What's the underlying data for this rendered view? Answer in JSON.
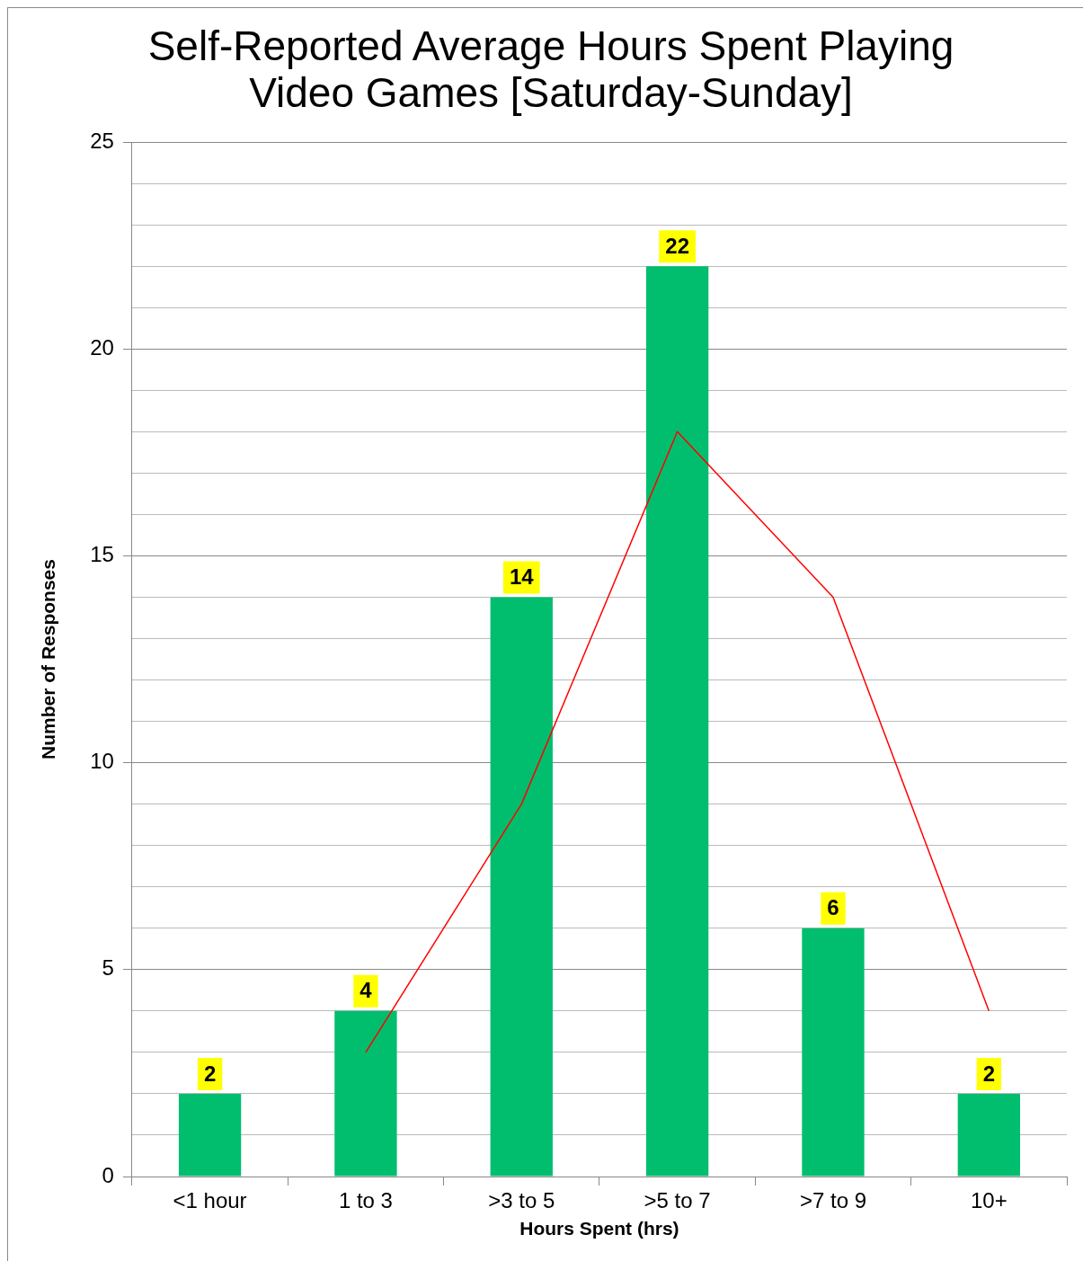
{
  "chart_data": {
    "type": "bar",
    "title": "Self-Reported Average Hours Spent Playing Video Games [Saturday-Sunday]",
    "xlabel": "Hours Spent (hrs)",
    "ylabel": "Number of Responses",
    "categories": [
      "<1 hour",
      "1 to 3",
      ">3 to 5",
      ">5 to 7",
      ">7 to 9",
      "10+"
    ],
    "series": [
      {
        "color": "#00be6e",
        "values": [
          2,
          4,
          14,
          22,
          6,
          2
        ],
        "value_labels": [
          "2",
          "4",
          "14",
          "22",
          "6",
          "2"
        ]
      },
      {
        "type": "line",
        "color": "#ff0000",
        "values": [
          null,
          3,
          9,
          18,
          14,
          4
        ]
      }
    ],
    "ylim": [
      0,
      25
    ],
    "yticks": [
      0,
      {
        "value": 1,
        "label": null
      },
      {
        "value": 2,
        "label": null
      },
      {
        "value": 3,
        "label": null
      },
      {
        "value": 4,
        "label": null
      },
      5,
      {
        "value": 6,
        "label": null
      },
      {
        "value": 7,
        "label": null
      },
      {
        "value": 8,
        "label": null
      },
      {
        "value": 9,
        "label": null
      },
      10,
      {
        "value": 11,
        "label": null
      },
      {
        "value": 12,
        "label": null
      },
      {
        "value": 13,
        "label": null
      },
      {
        "value": 14,
        "label": null
      },
      15,
      {
        "value": 16,
        "label": null
      },
      {
        "value": 17,
        "label": null
      },
      {
        "value": 18,
        "label": null
      },
      {
        "value": 19,
        "label": null
      },
      20,
      {
        "value": 21,
        "label": null
      },
      {
        "value": 22,
        "label": null
      },
      {
        "value": 23,
        "label": null
      },
      {
        "value": 24,
        "label": null
      },
      25
    ],
    "grid": "y",
    "legend": false,
    "marker": "none",
    "line_style": "solid"
  }
}
